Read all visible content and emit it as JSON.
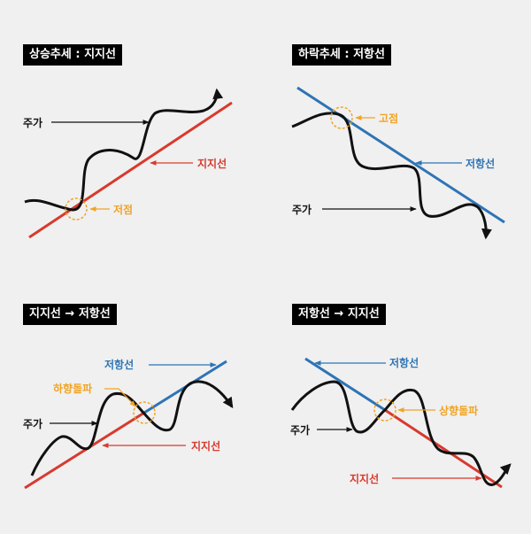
{
  "colors": {
    "support": "#d83a2e",
    "resistance": "#2e74b5",
    "point": "#f0a425",
    "text": "#111111",
    "background": "#f0f0f0"
  },
  "panels": [
    {
      "title": "상승추세 : 지지선",
      "price_label": "주가",
      "line_label": "지지선",
      "point_label": "저점"
    },
    {
      "title": "하락추세 : 저항선",
      "price_label": "주가",
      "line_label": "저항선",
      "point_label": "고점"
    },
    {
      "title": "지지선 → 저항선",
      "price_label": "주가",
      "resistance_label": "저항선",
      "support_label": "지지선",
      "point_label": "하향돌파"
    },
    {
      "title": "저항선 → 지지선",
      "price_label": "주가",
      "resistance_label": "저항선",
      "support_label": "지지선",
      "point_label": "상향돌파"
    }
  ]
}
